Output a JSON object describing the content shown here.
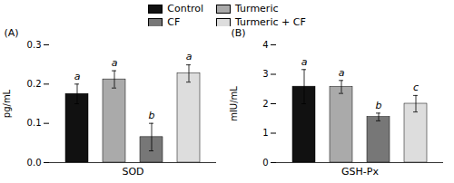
{
  "chart_data": [
    {
      "type": "bar",
      "title": "(A)",
      "xlabel": "SOD",
      "ylabel": "pg/mL",
      "categories": [
        "Control",
        "Turmeric",
        "CF",
        "Turmeric + CF"
      ],
      "colors": [
        "#111111",
        "#aaaaaa",
        "#777777",
        "#dddddd"
      ],
      "values": [
        0.175,
        0.212,
        0.065,
        0.227
      ],
      "errors": [
        0.025,
        0.022,
        0.035,
        0.022
      ],
      "annotations": [
        "a",
        "a",
        "b",
        "a"
      ],
      "ylim": [
        0,
        0.3
      ],
      "yticks": [
        {
          "value": 0,
          "label": "0.0"
        },
        0.1,
        0.2,
        0.3
      ],
      "tick_labels": "y",
      "legend": "top"
    },
    {
      "type": "bar",
      "title": "(B)",
      "xlabel": "GSH-Px",
      "ylabel": "mIU/mL",
      "categories": [
        "Control",
        "Turmeric",
        "CF",
        "Turmeric + CF"
      ],
      "colors": [
        "#111111",
        "#aaaaaa",
        "#777777",
        "#dddddd"
      ],
      "values": [
        2.58,
        2.57,
        1.55,
        2.0
      ],
      "errors": [
        0.58,
        0.22,
        0.13,
        0.28
      ],
      "annotations": [
        "a",
        "a",
        "b",
        "c"
      ],
      "ylim": [
        0,
        4
      ],
      "yticks": [
        0,
        1,
        2,
        3,
        4
      ],
      "tick_labels": "y"
    }
  ]
}
